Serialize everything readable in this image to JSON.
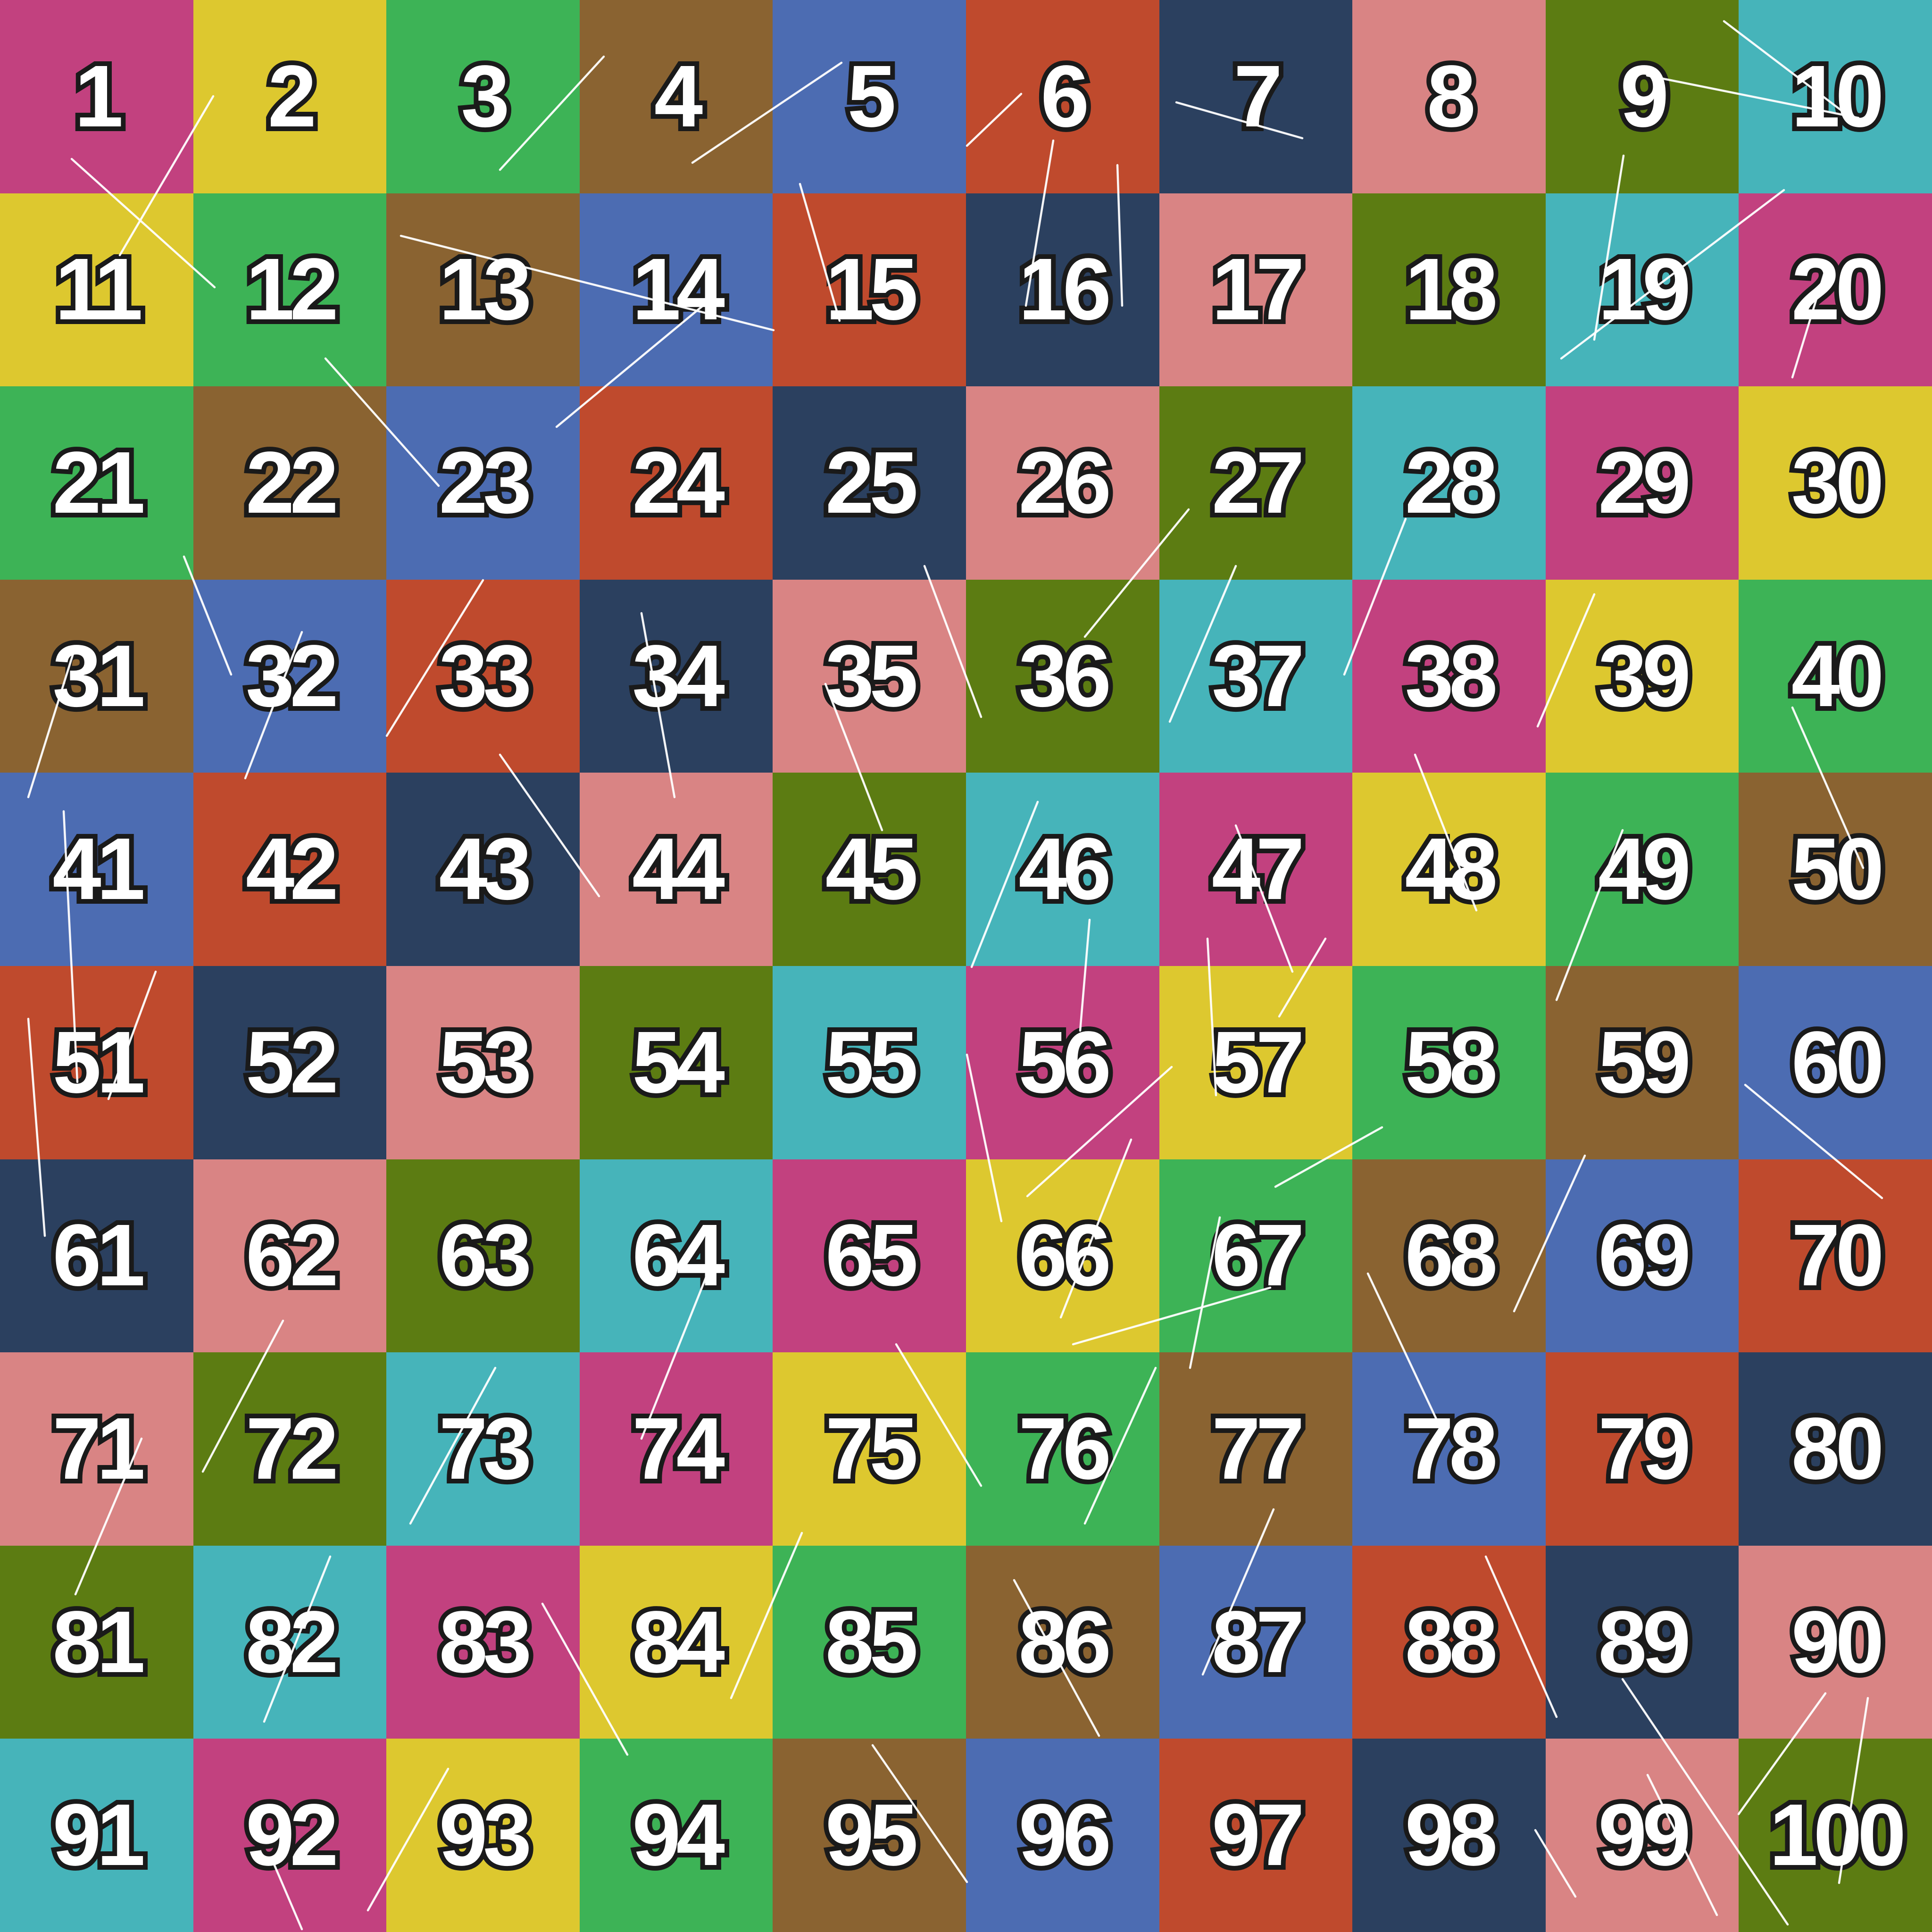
{
  "grid": {
    "rows": 10,
    "cols": 10,
    "palette": {
      "magenta": "#c2417f",
      "yellow": "#ddc82f",
      "green": "#3db356",
      "brown": "#8a6331",
      "blue": "#4c6cb2",
      "red": "#bf4a2d",
      "navy": "#2b405f",
      "salmon": "#d98484",
      "olive": "#5c7c12",
      "teal": "#46b4ba"
    },
    "cells": [
      {
        "label": "1",
        "color": "magenta"
      },
      {
        "label": "2",
        "color": "yellow"
      },
      {
        "label": "3",
        "color": "green"
      },
      {
        "label": "4",
        "color": "brown"
      },
      {
        "label": "5",
        "color": "blue"
      },
      {
        "label": "6",
        "color": "red"
      },
      {
        "label": "7",
        "color": "navy"
      },
      {
        "label": "8",
        "color": "salmon"
      },
      {
        "label": "9",
        "color": "olive"
      },
      {
        "label": "10",
        "color": "teal"
      },
      {
        "label": "11",
        "color": "yellow"
      },
      {
        "label": "12",
        "color": "green"
      },
      {
        "label": "13",
        "color": "brown"
      },
      {
        "label": "14",
        "color": "blue"
      },
      {
        "label": "15",
        "color": "red"
      },
      {
        "label": "16",
        "color": "navy"
      },
      {
        "label": "17",
        "color": "salmon"
      },
      {
        "label": "18",
        "color": "olive"
      },
      {
        "label": "19",
        "color": "teal"
      },
      {
        "label": "20",
        "color": "magenta"
      },
      {
        "label": "21",
        "color": "green"
      },
      {
        "label": "22",
        "color": "brown"
      },
      {
        "label": "23",
        "color": "blue"
      },
      {
        "label": "24",
        "color": "red"
      },
      {
        "label": "25",
        "color": "navy"
      },
      {
        "label": "26",
        "color": "salmon"
      },
      {
        "label": "27",
        "color": "olive"
      },
      {
        "label": "28",
        "color": "teal"
      },
      {
        "label": "29",
        "color": "magenta"
      },
      {
        "label": "30",
        "color": "yellow"
      },
      {
        "label": "31",
        "color": "brown"
      },
      {
        "label": "32",
        "color": "blue"
      },
      {
        "label": "33",
        "color": "red"
      },
      {
        "label": "34",
        "color": "navy"
      },
      {
        "label": "35",
        "color": "salmon"
      },
      {
        "label": "36",
        "color": "olive"
      },
      {
        "label": "37",
        "color": "teal"
      },
      {
        "label": "38",
        "color": "magenta"
      },
      {
        "label": "39",
        "color": "yellow"
      },
      {
        "label": "40",
        "color": "green"
      },
      {
        "label": "41",
        "color": "blue"
      },
      {
        "label": "42",
        "color": "red"
      },
      {
        "label": "43",
        "color": "navy"
      },
      {
        "label": "44",
        "color": "salmon"
      },
      {
        "label": "45",
        "color": "olive"
      },
      {
        "label": "46",
        "color": "teal"
      },
      {
        "label": "47",
        "color": "magenta"
      },
      {
        "label": "48",
        "color": "yellow"
      },
      {
        "label": "49",
        "color": "green"
      },
      {
        "label": "50",
        "color": "brown"
      },
      {
        "label": "51",
        "color": "red"
      },
      {
        "label": "52",
        "color": "navy"
      },
      {
        "label": "53",
        "color": "salmon"
      },
      {
        "label": "54",
        "color": "olive"
      },
      {
        "label": "55",
        "color": "teal"
      },
      {
        "label": "56",
        "color": "magenta"
      },
      {
        "label": "57",
        "color": "yellow"
      },
      {
        "label": "58",
        "color": "green"
      },
      {
        "label": "59",
        "color": "brown"
      },
      {
        "label": "60",
        "color": "blue"
      },
      {
        "label": "61",
        "color": "navy"
      },
      {
        "label": "62",
        "color": "salmon"
      },
      {
        "label": "63",
        "color": "olive"
      },
      {
        "label": "64",
        "color": "teal"
      },
      {
        "label": "65",
        "color": "magenta"
      },
      {
        "label": "66",
        "color": "yellow"
      },
      {
        "label": "67",
        "color": "green"
      },
      {
        "label": "68",
        "color": "brown"
      },
      {
        "label": "69",
        "color": "blue"
      },
      {
        "label": "70",
        "color": "red"
      },
      {
        "label": "71",
        "color": "salmon"
      },
      {
        "label": "72",
        "color": "olive"
      },
      {
        "label": "73",
        "color": "teal"
      },
      {
        "label": "74",
        "color": "magenta"
      },
      {
        "label": "75",
        "color": "yellow"
      },
      {
        "label": "76",
        "color": "green"
      },
      {
        "label": "77",
        "color": "brown"
      },
      {
        "label": "78",
        "color": "blue"
      },
      {
        "label": "79",
        "color": "red"
      },
      {
        "label": "80",
        "color": "navy"
      },
      {
        "label": "81",
        "color": "olive"
      },
      {
        "label": "82",
        "color": "teal"
      },
      {
        "label": "83",
        "color": "magenta"
      },
      {
        "label": "84",
        "color": "yellow"
      },
      {
        "label": "85",
        "color": "green"
      },
      {
        "label": "86",
        "color": "brown"
      },
      {
        "label": "87",
        "color": "blue"
      },
      {
        "label": "88",
        "color": "red"
      },
      {
        "label": "89",
        "color": "navy"
      },
      {
        "label": "90",
        "color": "salmon"
      },
      {
        "label": "91",
        "color": "teal"
      },
      {
        "label": "92",
        "color": "magenta"
      },
      {
        "label": "93",
        "color": "yellow"
      },
      {
        "label": "94",
        "color": "green"
      },
      {
        "label": "95",
        "color": "brown"
      },
      {
        "label": "96",
        "color": "blue"
      },
      {
        "label": "97",
        "color": "red"
      },
      {
        "label": "98",
        "color": "navy"
      },
      {
        "label": "99",
        "color": "salmon"
      },
      {
        "label": "100",
        "color": "olive"
      }
    ]
  },
  "decor": {
    "line_color": "#ffffff",
    "line_width": 4.5,
    "line_opacity": 0.95,
    "lines": [
      [
        452,
        204,
        254,
        541
      ],
      [
        152,
        337,
        455,
        609
      ],
      [
        850,
        500,
        1640,
        700
      ],
      [
        1500,
        640,
        1180,
        905
      ],
      [
        1784,
        133,
        1468,
        345
      ],
      [
        1696,
        390,
        1780,
        680
      ],
      [
        2165,
        199,
        2050,
        309
      ],
      [
        2494,
        217,
        2761,
        293
      ],
      [
        2233,
        298,
        2175,
        648
      ],
      [
        2369,
        350,
        2379,
        648
      ],
      [
        3492,
        160,
        3940,
        250
      ],
      [
        3655,
        45,
        3905,
        235
      ],
      [
        3442,
        330,
        3380,
        720
      ],
      [
        3782,
        403,
        3310,
        760
      ],
      [
        3873,
        562,
        3800,
        800
      ],
      [
        160,
        1370,
        60,
        1690
      ],
      [
        135,
        1720,
        164,
        2294
      ],
      [
        60,
        2160,
        95,
        2620
      ],
      [
        230,
        2330,
        330,
        2060
      ],
      [
        390,
        1180,
        490,
        1430
      ],
      [
        640,
        1340,
        520,
        1650
      ],
      [
        820,
        1560,
        1024,
        1230
      ],
      [
        1060,
        1600,
        1270,
        1900
      ],
      [
        1360,
        1300,
        1430,
        1690
      ],
      [
        1750,
        1450,
        1870,
        1760
      ],
      [
        1960,
        1200,
        2080,
        1520
      ],
      [
        2300,
        1350,
        2520,
        1080
      ],
      [
        2620,
        1200,
        2480,
        1530
      ],
      [
        2980,
        1100,
        2850,
        1430
      ],
      [
        3260,
        1540,
        3380,
        1260
      ],
      [
        2200,
        1700,
        2060,
        2050
      ],
      [
        2620,
        1750,
        2740,
        2060
      ],
      [
        3000,
        1600,
        3130,
        1930
      ],
      [
        3440,
        1760,
        3300,
        2120
      ],
      [
        3800,
        1500,
        3950,
        1840
      ],
      [
        2310,
        1950,
        2290,
        2185
      ],
      [
        2050,
        2236,
        2123,
        2589
      ],
      [
        2178,
        2536,
        2484,
        2262
      ],
      [
        2398,
        2416,
        2249,
        2793
      ],
      [
        2560,
        1990,
        2578,
        2322
      ],
      [
        2810,
        1990,
        2712,
        2155
      ],
      [
        2930,
        2390,
        2704,
        2516
      ],
      [
        2586,
        2581,
        2523,
        2900
      ],
      [
        2275,
        2850,
        2693,
        2730
      ],
      [
        3700,
        2300,
        3990,
        2540
      ],
      [
        3360,
        2450,
        3210,
        2780
      ],
      [
        2900,
        2700,
        3060,
        3040
      ],
      [
        2450,
        2900,
        2300,
        3230
      ],
      [
        1900,
        2850,
        2080,
        3150
      ],
      [
        1500,
        2700,
        1360,
        3050
      ],
      [
        1050,
        2900,
        870,
        3230
      ],
      [
        600,
        2800,
        430,
        3120
      ],
      [
        300,
        3050,
        160,
        3380
      ],
      [
        700,
        3300,
        560,
        3650
      ],
      [
        1150,
        3400,
        1330,
        3720
      ],
      [
        1700,
        3250,
        1550,
        3600
      ],
      [
        2150,
        3350,
        2330,
        3680
      ],
      [
        2700,
        3200,
        2550,
        3550
      ],
      [
        3150,
        3300,
        3300,
        3640
      ],
      [
        1850,
        3700,
        2050,
        3990
      ],
      [
        950,
        3750,
        780,
        4050
      ],
      [
        3440,
        3560,
        3790,
        4080
      ],
      [
        3493,
        3763,
        3640,
        4060
      ],
      [
        3870,
        3590,
        3686,
        3846
      ],
      [
        3960,
        3600,
        3899,
        3992
      ],
      [
        3255,
        3880,
        3340,
        4021
      ],
      [
        580,
        3950,
        640,
        4090
      ],
      [
        1280,
        120,
        1060,
        360
      ],
      [
        690,
        760,
        930,
        1030
      ]
    ]
  }
}
